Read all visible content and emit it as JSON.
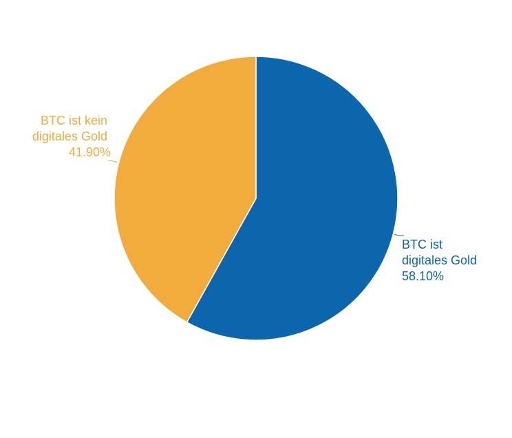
{
  "chart_data": {
    "type": "pie",
    "slices": [
      {
        "label_lines": [
          "BTC ist",
          "digitales Gold"
        ],
        "value_label": "58.10%",
        "value": 58.1,
        "color": "#0b66ae"
      },
      {
        "label_lines": [
          "BTC ist kein",
          "digitales Gold"
        ],
        "value_label": "41.90%",
        "value": 41.9,
        "color": "#f2ac3c"
      }
    ],
    "start_angle_deg": 0,
    "direction": "clockwise",
    "legend": "none"
  }
}
